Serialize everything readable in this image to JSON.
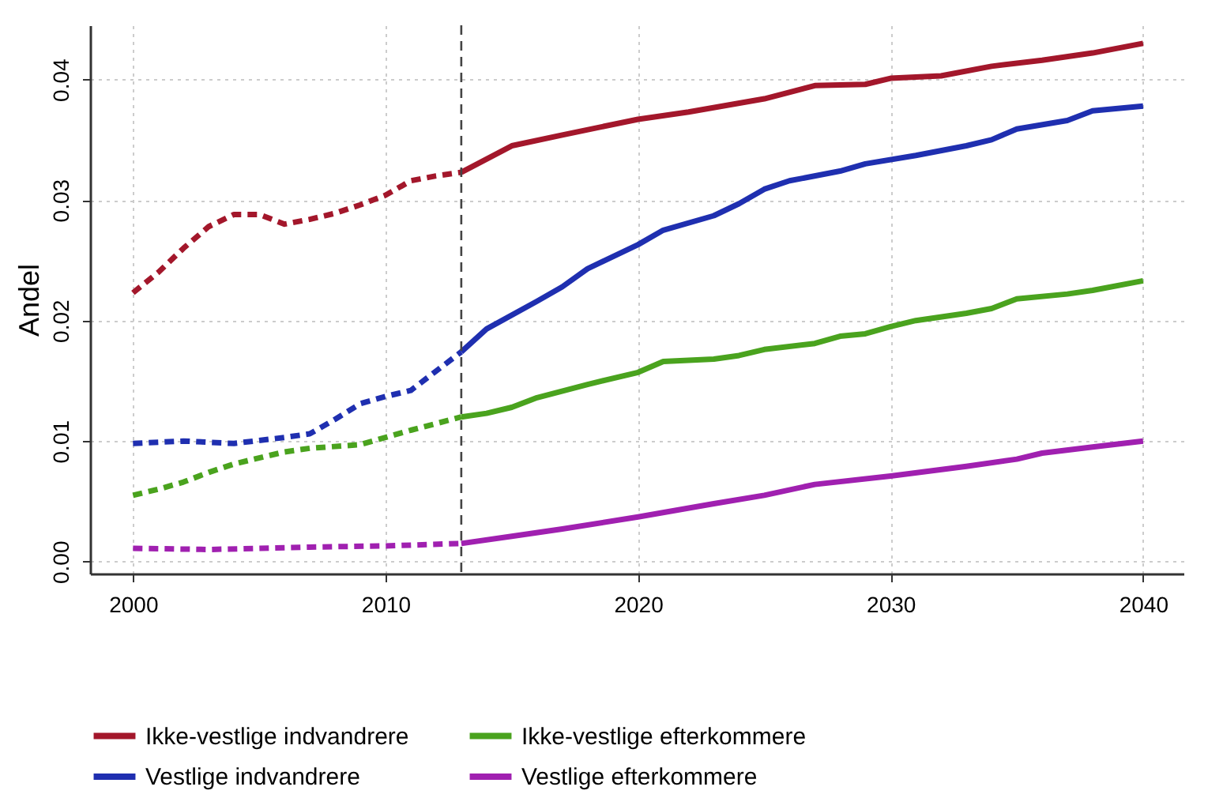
{
  "chart_data": {
    "type": "line",
    "ylabel": "Andel",
    "xlim": [
      1998.3,
      2041.6
    ],
    "xticks": [
      2000,
      2010,
      2020,
      2030,
      2040
    ],
    "ylim": [
      -0.001,
      0.0445
    ],
    "yticks": [
      {
        "value": 0,
        "label": "0.00"
      },
      {
        "value": 0.01,
        "label": "0.01"
      },
      {
        "value": 0.02,
        "label": "0.02"
      },
      {
        "value": 0.03,
        "label": "0.03"
      },
      {
        "value": 0.04,
        "label": "0.04"
      }
    ],
    "grid": true,
    "legend": "bottom",
    "marker": "none",
    "ref_lines": [
      {
        "axis": "x",
        "value": 2013,
        "label": null,
        "color": "#444444",
        "line_style": "dashed"
      }
    ],
    "series": [
      {
        "color": "#a3172b",
        "line_style": "dashed",
        "x": [
          2000,
          2001,
          2002,
          2003,
          2004,
          2005,
          2006,
          2007,
          2008,
          2009,
          2010,
          2011,
          2012,
          2013
        ],
        "values": [
          0.0223,
          0.024,
          0.026,
          0.0278,
          0.0288,
          0.0288,
          0.028,
          0.0284,
          0.0289,
          0.0296,
          0.0304,
          0.0316,
          0.032,
          0.0323
        ]
      },
      {
        "name": "Ikke-vestlige indvandrere",
        "color": "#a3172b",
        "line_style": "solid",
        "x": [
          2013,
          2015,
          2017,
          2020,
          2022,
          2025,
          2027,
          2029,
          2030,
          2032,
          2034,
          2036,
          2038,
          2040
        ],
        "values": [
          0.0323,
          0.0345,
          0.0354,
          0.0367,
          0.0373,
          0.0384,
          0.0395,
          0.0396,
          0.0401,
          0.0403,
          0.0411,
          0.0416,
          0.0422,
          0.043
        ]
      },
      {
        "color": "#4aa31e",
        "line_style": "dashed",
        "x": [
          2000,
          2001,
          2002,
          2003,
          2004,
          2006,
          2007,
          2009,
          2010,
          2011,
          2013
        ],
        "values": [
          0.0055,
          0.006,
          0.0066,
          0.0074,
          0.0081,
          0.0091,
          0.0094,
          0.0097,
          0.0103,
          0.0109,
          0.012
        ]
      },
      {
        "name": "Ikke-vestlige efterkommere",
        "color": "#4aa31e",
        "line_style": "solid",
        "x": [
          2013,
          2014,
          2015,
          2016,
          2018,
          2020,
          2021,
          2023,
          2024,
          2025,
          2027,
          2028,
          2029,
          2030,
          2031,
          2033,
          2034,
          2035,
          2037,
          2038,
          2040
        ],
        "values": [
          0.012,
          0.0123,
          0.0128,
          0.0136,
          0.0147,
          0.0157,
          0.0166,
          0.0168,
          0.0171,
          0.0176,
          0.0181,
          0.0187,
          0.0189,
          0.0195,
          0.02,
          0.0206,
          0.021,
          0.0218,
          0.0222,
          0.0225,
          0.0233
        ]
      },
      {
        "color": "#1f2fb0",
        "line_style": "dashed",
        "x": [
          2000,
          2002,
          2004,
          2006,
          2007,
          2008,
          2009,
          2010,
          2011,
          2012,
          2013
        ],
        "values": [
          0.0098,
          0.01,
          0.0098,
          0.0103,
          0.0106,
          0.0118,
          0.0131,
          0.0137,
          0.0142,
          0.0158,
          0.0174
        ]
      },
      {
        "name": "Vestlige indvandrere",
        "color": "#1f2fb0",
        "line_style": "solid",
        "x": [
          2013,
          2014,
          2016,
          2017,
          2018,
          2020,
          2021,
          2023,
          2024,
          2025,
          2026,
          2028,
          2029,
          2031,
          2033,
          2034,
          2035,
          2037,
          2038,
          2040
        ],
        "values": [
          0.0174,
          0.0193,
          0.0216,
          0.0228,
          0.0243,
          0.0263,
          0.0275,
          0.0287,
          0.0297,
          0.0309,
          0.0316,
          0.0324,
          0.033,
          0.0337,
          0.0345,
          0.035,
          0.0359,
          0.0366,
          0.0374,
          0.0378
        ]
      },
      {
        "color": "#a020b0",
        "line_style": "dashed",
        "x": [
          2000,
          2003,
          2005,
          2007,
          2010,
          2013
        ],
        "values": [
          0.0011,
          0.001,
          0.0011,
          0.0012,
          0.0013,
          0.0015
        ]
      },
      {
        "name": "Vestlige efterkommere",
        "color": "#a020b0",
        "line_style": "solid",
        "x": [
          2013,
          2015,
          2017,
          2020,
          2023,
          2025,
          2027,
          2030,
          2033,
          2035,
          2036,
          2038,
          2040
        ],
        "values": [
          0.0015,
          0.0021,
          0.0027,
          0.0037,
          0.0048,
          0.0055,
          0.0064,
          0.0071,
          0.0079,
          0.0085,
          0.009,
          0.0095,
          0.01
        ]
      }
    ]
  }
}
